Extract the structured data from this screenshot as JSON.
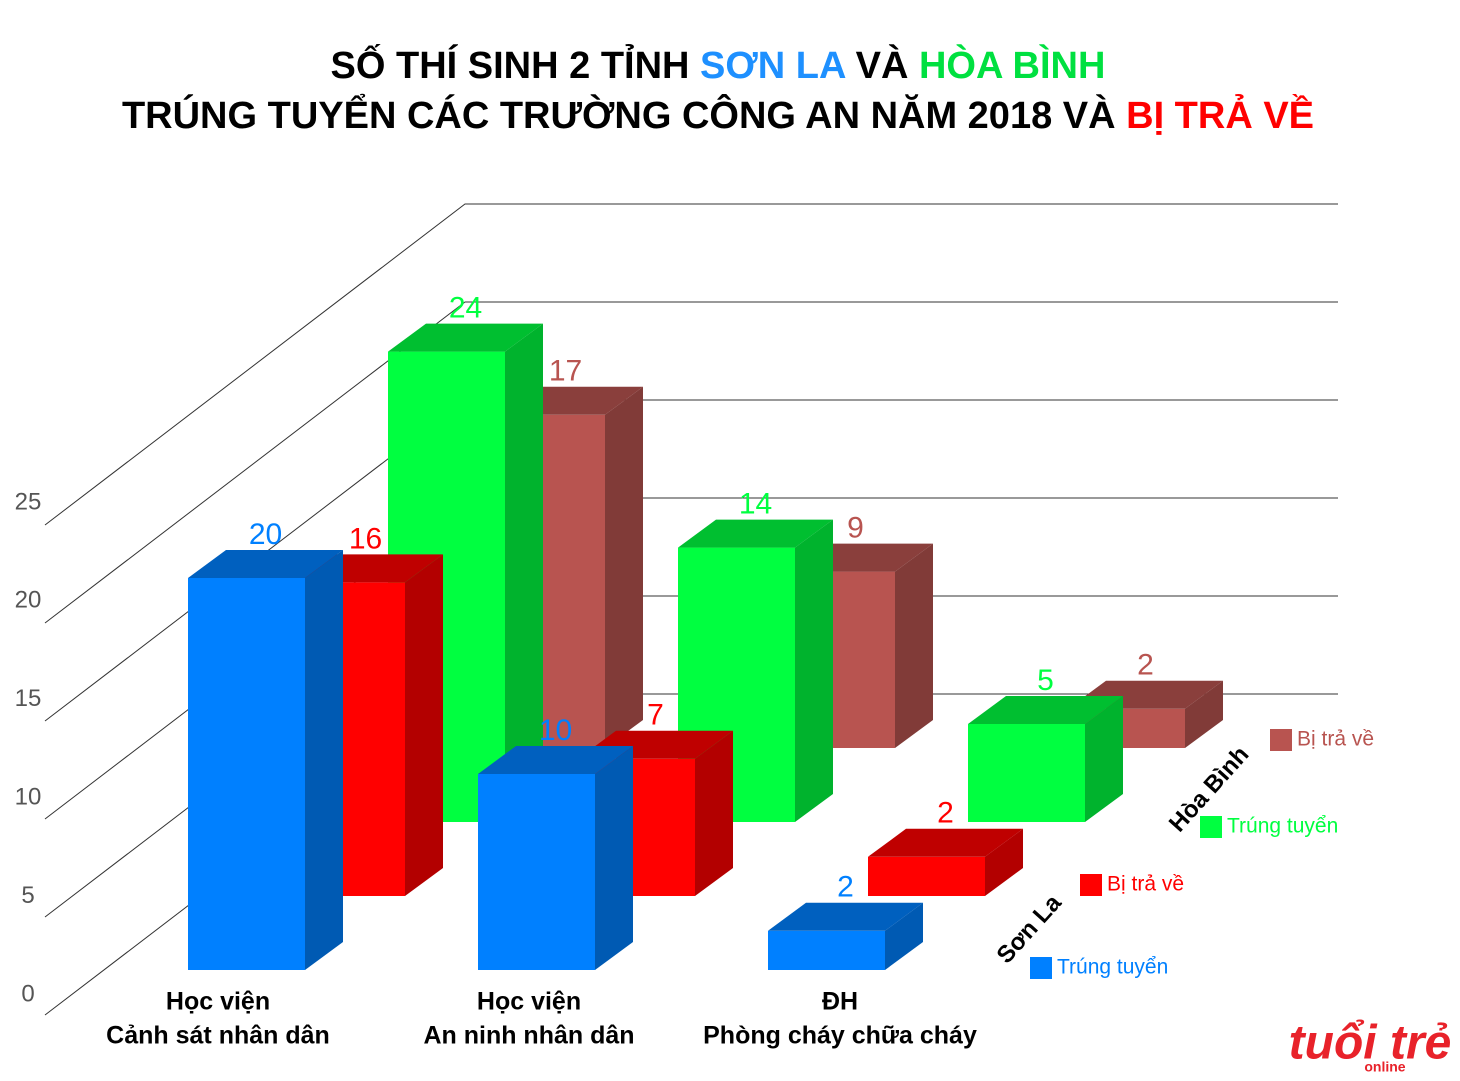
{
  "chart_data": {
    "type": "bar3d",
    "title": [
      [
        {
          "text": "SỐ THÍ SINH 2 TỈNH ",
          "color": "#000000"
        },
        {
          "text": "SƠN LA",
          "color": "#1e90ff"
        },
        {
          "text": " VÀ ",
          "color": "#000000"
        },
        {
          "text": "HÒA BÌNH",
          "color": "#00e040"
        }
      ],
      [
        {
          "text": "TRÚNG TUYỂN CÁC TRƯỜNG CÔNG AN NĂM 2018 VÀ ",
          "color": "#000000"
        },
        {
          "text": "BỊ TRẢ VỀ",
          "color": "#ff0000"
        }
      ]
    ],
    "categories": [
      [
        "Học viện",
        "Cảnh sát nhân dân"
      ],
      [
        "Học viện",
        "An ninh nhân dân"
      ],
      [
        "ĐH",
        "Phòng cháy chữa cháy"
      ]
    ],
    "rows": [
      {
        "name": "Sơn La",
        "series": [
          {
            "name": "Trúng tuyển",
            "color": "#0080ff",
            "values": [
              20,
              10,
              2
            ]
          },
          {
            "name": "Bị trả về",
            "color": "#ff0000",
            "values": [
              16,
              7,
              2
            ]
          }
        ]
      },
      {
        "name": "Hòa Bình",
        "series": [
          {
            "name": "Trúng tuyển",
            "color": "#00ff40",
            "values": [
              24,
              14,
              5
            ]
          },
          {
            "name": "Bị trả về",
            "color": "#b85450",
            "values": [
              17,
              9,
              2
            ]
          }
        ]
      }
    ],
    "ylim": [
      0,
      25
    ],
    "yticks": [
      0,
      5,
      10,
      15,
      20,
      25
    ],
    "grid": true
  },
  "logo": {
    "main": "tuổi trẻ",
    "sub": "online"
  }
}
